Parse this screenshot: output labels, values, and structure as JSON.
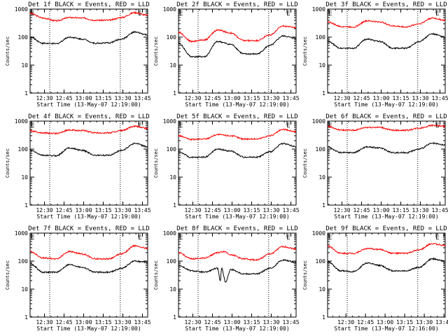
{
  "chart_data": [
    {
      "type": "line",
      "title": "Det 1f BLACK = Events, RED = LLD",
      "xlabel": "Start Time (13-May-07 12:19:00)",
      "ylabel": "Counts/sec",
      "yscale": "log",
      "ylim": [
        1,
        1000
      ],
      "xlim": [
        0,
        90
      ],
      "x_tick_labels": [
        "12:30",
        "12:45",
        "13:00",
        "13:15",
        "13:30",
        "13:45"
      ],
      "x_tick_values": [
        11,
        26,
        41,
        56,
        71,
        86
      ],
      "y_tick_labels": [
        "1",
        "10",
        "100",
        "1000"
      ],
      "y_tick_values": [
        1,
        10,
        100,
        1000
      ],
      "markers": [
        {
          "label": "E",
          "x": 0
        },
        {
          "label": "E",
          "x": 82
        }
      ],
      "dotted_lines_x": [
        15,
        69
      ],
      "series": [
        {
          "color": "#ff0000",
          "x": [
            0,
            10,
            20,
            30,
            40,
            50,
            60,
            70,
            80,
            90
          ],
          "values": [
            700,
            480,
            380,
            500,
            480,
            400,
            400,
            500,
            750,
            600
          ]
        },
        {
          "color": "#000000",
          "x": [
            0,
            10,
            20,
            30,
            40,
            50,
            60,
            70,
            80,
            90
          ],
          "values": [
            100,
            60,
            58,
            100,
            85,
            60,
            62,
            85,
            150,
            120
          ]
        }
      ]
    },
    {
      "type": "line",
      "title": "Det 2f BLACK = Events, RED = LLD",
      "xlabel": "Start Time (13-May-07 12:19:00)",
      "ylabel": "Counts/sec",
      "yscale": "log",
      "ylim": [
        1,
        1000
      ],
      "xlim": [
        0,
        90
      ],
      "x_tick_labels": [
        "12:30",
        "12:45",
        "13:00",
        "13:15",
        "13:30",
        "13:45"
      ],
      "x_tick_values": [
        11,
        26,
        41,
        56,
        71,
        86
      ],
      "y_tick_labels": [
        "1",
        "10",
        "100",
        "1000"
      ],
      "y_tick_values": [
        1,
        10,
        100,
        1000
      ],
      "markers": [
        {
          "label": "E",
          "x": 0
        },
        {
          "label": "E",
          "x": 82
        }
      ],
      "dotted_lines_x": [
        15,
        69
      ],
      "series": [
        {
          "color": "#ff0000",
          "x": [
            0,
            10,
            20,
            30,
            40,
            50,
            60,
            70,
            80,
            90
          ],
          "values": [
            150,
            70,
            80,
            180,
            140,
            75,
            75,
            120,
            250,
            220
          ]
        },
        {
          "color": "#000000",
          "x": [
            0,
            10,
            20,
            30,
            40,
            50,
            60,
            70,
            80,
            90
          ],
          "values": [
            60,
            20,
            20,
            70,
            55,
            25,
            25,
            50,
            110,
            90
          ]
        }
      ]
    },
    {
      "type": "line",
      "title": "Det 3f BLACK = Events, RED = LLD",
      "xlabel": "Start Time (13-May-07 12:19:00)",
      "ylabel": "Counts/sec",
      "yscale": "log",
      "ylim": [
        1,
        1000
      ],
      "xlim": [
        0,
        90
      ],
      "x_tick_labels": [
        "12:30",
        "12:45",
        "13:00",
        "13:15",
        "13:30",
        "13:45"
      ],
      "x_tick_values": [
        11,
        26,
        41,
        56,
        71,
        86
      ],
      "y_tick_labels": [
        "1",
        "10",
        "100",
        "1000"
      ],
      "y_tick_values": [
        1,
        10,
        100,
        1000
      ],
      "markers": [
        {
          "label": "E",
          "x": 0
        },
        {
          "label": "E",
          "x": 82
        }
      ],
      "dotted_lines_x": [
        15,
        69
      ],
      "series": [
        {
          "color": "#ff0000",
          "x": [
            0,
            10,
            20,
            30,
            40,
            50,
            60,
            70,
            80,
            90
          ],
          "values": [
            350,
            240,
            230,
            380,
            350,
            250,
            230,
            300,
            480,
            400
          ]
        },
        {
          "color": "#000000",
          "x": [
            0,
            10,
            20,
            30,
            40,
            50,
            60,
            70,
            80,
            90
          ],
          "values": [
            70,
            40,
            40,
            85,
            70,
            40,
            40,
            70,
            130,
            100
          ]
        }
      ]
    },
    {
      "type": "line",
      "title": "Det 4f BLACK = Events, RED = LLD",
      "xlabel": "Start Time (13-May-07 12:19:00)",
      "ylabel": "Counts/sec",
      "yscale": "log",
      "ylim": [
        1,
        1000
      ],
      "xlim": [
        0,
        90
      ],
      "x_tick_labels": [
        "12:30",
        "12:45",
        "13:00",
        "13:15",
        "13:30",
        "13:45"
      ],
      "x_tick_values": [
        11,
        26,
        41,
        56,
        71,
        86
      ],
      "y_tick_labels": [
        "1",
        "10",
        "100",
        "1000"
      ],
      "y_tick_values": [
        1,
        10,
        100,
        1000
      ],
      "markers": [
        {
          "label": "E",
          "x": 0
        },
        {
          "label": "E",
          "x": 82
        }
      ],
      "dotted_lines_x": [
        15,
        69
      ],
      "series": [
        {
          "color": "#ff0000",
          "x": [
            0,
            10,
            20,
            30,
            40,
            50,
            60,
            70,
            80,
            90
          ],
          "values": [
            450,
            380,
            360,
            480,
            460,
            380,
            380,
            460,
            650,
            550
          ]
        },
        {
          "color": "#000000",
          "x": [
            0,
            10,
            20,
            30,
            40,
            50,
            60,
            70,
            80,
            90
          ],
          "values": [
            90,
            60,
            58,
            110,
            90,
            60,
            60,
            90,
            160,
            120
          ]
        }
      ]
    },
    {
      "type": "line",
      "title": "Det 5f BLACK = Events, RED = LLD",
      "xlabel": "Start Time (13-May-07 12:19:00)",
      "ylabel": "Counts/sec",
      "yscale": "log",
      "ylim": [
        1,
        1000
      ],
      "xlim": [
        0,
        90
      ],
      "x_tick_labels": [
        "12:30",
        "12:45",
        "13:00",
        "13:15",
        "13:30",
        "13:45"
      ],
      "x_tick_values": [
        11,
        26,
        41,
        56,
        71,
        86
      ],
      "y_tick_labels": [
        "1",
        "10",
        "100",
        "1000"
      ],
      "y_tick_values": [
        1,
        10,
        100,
        1000
      ],
      "markers": [
        {
          "label": "E",
          "x": 0
        },
        {
          "label": "E",
          "x": 82
        }
      ],
      "dotted_lines_x": [
        15,
        69
      ],
      "series": [
        {
          "color": "#ff0000",
          "x": [
            0,
            10,
            20,
            30,
            40,
            50,
            60,
            70,
            80,
            90
          ],
          "values": [
            300,
            220,
            230,
            330,
            300,
            230,
            230,
            300,
            500,
            420
          ]
        },
        {
          "color": "#000000",
          "x": [
            0,
            10,
            20,
            30,
            40,
            50,
            60,
            70,
            80,
            90
          ],
          "values": [
            80,
            50,
            52,
            100,
            85,
            52,
            52,
            80,
            160,
            120
          ]
        }
      ]
    },
    {
      "type": "line",
      "title": "Det 6f BLACK = Events, RED = LLD",
      "xlabel": "Start Time (13-May-07 12:19:00)",
      "ylabel": "Counts/sec",
      "yscale": "log",
      "ylim": [
        1,
        1000
      ],
      "xlim": [
        0,
        90
      ],
      "x_tick_labels": [
        "12:30",
        "12:45",
        "13:00",
        "13:15",
        "13:30",
        "13:45"
      ],
      "x_tick_values": [
        11,
        26,
        41,
        56,
        71,
        86
      ],
      "y_tick_labels": [
        "1",
        "10",
        "100",
        "1000"
      ],
      "y_tick_values": [
        1,
        10,
        100,
        1000
      ],
      "markers": [
        {
          "label": "E",
          "x": 0
        },
        {
          "label": "E",
          "x": 82
        }
      ],
      "dotted_lines_x": [
        15,
        69
      ],
      "series": [
        {
          "color": "#ff0000",
          "x": [
            0,
            10,
            20,
            30,
            40,
            50,
            60,
            70,
            80,
            90
          ],
          "values": [
            650,
            480,
            470,
            600,
            600,
            470,
            470,
            560,
            700,
            650
          ]
        },
        {
          "color": "#000000",
          "x": [
            0,
            10,
            20,
            30,
            40,
            50,
            60,
            70,
            80,
            90
          ],
          "values": [
            120,
            75,
            75,
            120,
            110,
            75,
            75,
            100,
            160,
            140
          ]
        }
      ]
    },
    {
      "type": "line",
      "title": "Det 7f BLACK = Events, RED = LLD",
      "xlabel": "Start Time (13-May-07 12:19:00)",
      "ylabel": "Counts/sec",
      "yscale": "log",
      "ylim": [
        1,
        1000
      ],
      "xlim": [
        0,
        90
      ],
      "x_tick_labels": [
        "12:30",
        "12:45",
        "13:00",
        "13:15",
        "13:30",
        "13:45"
      ],
      "x_tick_values": [
        11,
        26,
        41,
        56,
        71,
        86
      ],
      "y_tick_labels": [
        "1",
        "10",
        "100",
        "1000"
      ],
      "y_tick_values": [
        1,
        10,
        100,
        1000
      ],
      "markers": [
        {
          "label": "E",
          "x": 0
        },
        {
          "label": "E",
          "x": 82
        }
      ],
      "dotted_lines_x": [
        15,
        69
      ],
      "series": [
        {
          "color": "#ff0000",
          "x": [
            0,
            10,
            20,
            30,
            40,
            50,
            60,
            70,
            80,
            90
          ],
          "values": [
            220,
            130,
            120,
            220,
            180,
            120,
            120,
            180,
            350,
            280
          ]
        },
        {
          "color": "#000000",
          "x": [
            0,
            10,
            20,
            30,
            40,
            50,
            60,
            70,
            80,
            90
          ],
          "values": [
            80,
            40,
            40,
            75,
            60,
            40,
            40,
            55,
            100,
            90
          ]
        }
      ]
    },
    {
      "type": "line",
      "title": "Det 8f BLACK = Events, RED = LLD",
      "xlabel": "Start Time (13-May-07 12:19:00)",
      "ylabel": "Counts/sec",
      "yscale": "log",
      "ylim": [
        1,
        1000
      ],
      "xlim": [
        0,
        90
      ],
      "x_tick_labels": [
        "12:30",
        "12:45",
        "13:00",
        "13:15",
        "13:30",
        "13:45"
      ],
      "x_tick_values": [
        11,
        26,
        41,
        56,
        71,
        86
      ],
      "y_tick_labels": [
        "1",
        "10",
        "100",
        "1000"
      ],
      "y_tick_values": [
        1,
        10,
        100,
        1000
      ],
      "markers": [
        {
          "label": "E",
          "x": 0
        },
        {
          "label": "E",
          "x": 82
        }
      ],
      "dotted_lines_x": [
        15,
        69
      ],
      "series": [
        {
          "color": "#ff0000",
          "x": [
            0,
            10,
            20,
            30,
            35,
            40,
            50,
            60,
            70,
            80,
            90
          ],
          "values": [
            200,
            120,
            130,
            200,
            220,
            170,
            120,
            110,
            180,
            330,
            270
          ]
        },
        {
          "color": "#000000",
          "x": [
            0,
            10,
            20,
            30,
            32,
            33,
            36,
            40,
            50,
            60,
            70,
            80,
            90
          ],
          "values": [
            70,
            45,
            40,
            55,
            20,
            55,
            18,
            50,
            35,
            35,
            55,
            110,
            90
          ]
        }
      ]
    },
    {
      "type": "line",
      "title": "Det 9f BLACK = Events, RED = LLD",
      "xlabel": "Start Time (13-May-07 12:16:00)",
      "ylabel": "Counts/sec",
      "yscale": "log",
      "ylim": [
        1,
        1000
      ],
      "xlim": [
        0,
        90
      ],
      "x_tick_labels": [
        "12:30",
        "12:45",
        "13:00",
        "13:15",
        "13:30",
        "13:45"
      ],
      "x_tick_values": [
        14,
        29,
        44,
        59,
        74,
        89
      ],
      "y_tick_labels": [
        "1",
        "10",
        "100",
        "1000"
      ],
      "y_tick_values": [
        1,
        10,
        100,
        1000
      ],
      "markers": [
        {
          "label": "E",
          "x": 0
        },
        {
          "label": "E",
          "x": 82
        }
      ],
      "dotted_lines_x": [
        15,
        69
      ],
      "series": [
        {
          "color": "#ff0000",
          "x": [
            0,
            10,
            20,
            30,
            40,
            50,
            60,
            70,
            80,
            90
          ],
          "values": [
            350,
            190,
            190,
            280,
            260,
            190,
            190,
            250,
            420,
            360
          ]
        },
        {
          "color": "#000000",
          "x": [
            0,
            10,
            20,
            30,
            40,
            50,
            60,
            70,
            80,
            90
          ],
          "values": [
            95,
            45,
            42,
            85,
            70,
            45,
            45,
            60,
            120,
            100
          ]
        }
      ]
    }
  ]
}
